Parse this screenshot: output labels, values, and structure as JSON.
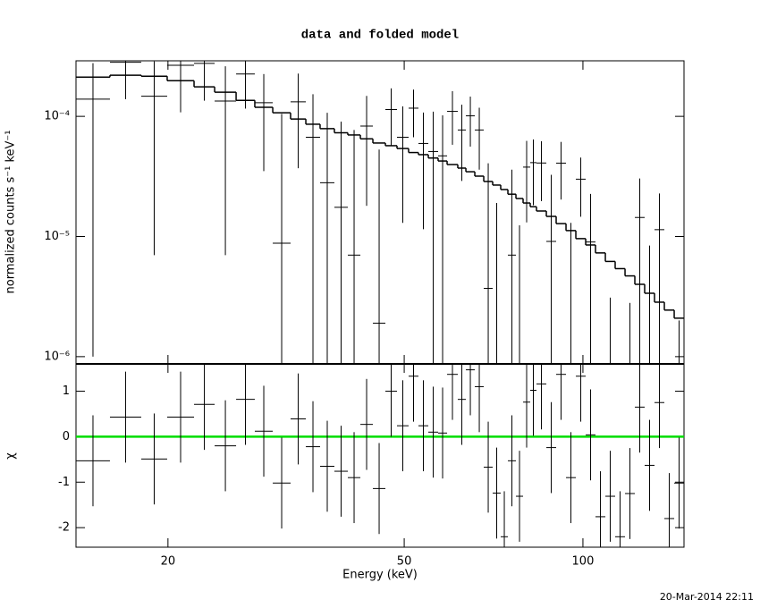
{
  "title": "data and folded model",
  "timestamp": "20-Mar-2014 22:11",
  "chart_data": [
    {
      "type": "spectrum",
      "ylabel": "normalized counts s⁻¹ keV⁻¹",
      "log_x": true,
      "log_y": true,
      "xlim": [
        14,
        148
      ],
      "ylim": [
        8.7e-07,
        0.00029
      ],
      "xticks": [
        20,
        50,
        100
      ],
      "yticks": [
        {
          "value": 1e-06,
          "label": "10⁻⁶"
        },
        {
          "value": 1e-05,
          "label": "10⁻⁵"
        },
        {
          "value": 0.0001,
          "label": "10⁻⁴"
        }
      ],
      "bins": [
        14.0,
        15.97,
        18.03,
        19.94,
        22.13,
        23.97,
        26.05,
        28.01,
        30.03,
        32.18,
        34.14,
        36.08,
        38.14,
        40.18,
        42.18,
        44.28,
        46.48,
        48.62,
        50.86,
        52.84,
        54.9,
        57.03,
        59.05,
        61.55,
        63.51,
        65.75,
        68.07,
        70.47,
        72.7,
        74.75,
        77.12,
        79.29,
        81.51,
        83.52,
        86.77,
        90.14,
        93.65,
        97.29,
        101.08,
        105.0,
        109.09,
        113.32,
        117.74,
        122.31,
        127.06,
        132.01,
        137.14,
        142.48,
        148.0
      ],
      "data": {
        "color": "#000000",
        "values": [
          0.000139,
          0.000282,
          0.000147,
          0.000266,
          0.000276,
          0.000134,
          0.000225,
          0.00013,
          8.8e-06,
          0.000132,
          6.7e-05,
          2.8e-05,
          1.75e-05,
          7e-06,
          8.3e-05,
          1.9e-06,
          0.000114,
          6.7e-05,
          0.000117,
          5.95e-05,
          5.1e-05,
          4.69e-05,
          0.00011,
          7.7e-05,
          0.000101,
          7.7e-05,
          3.7e-06,
          -1.6e-05,
          -4.6e-05,
          7e-06,
          -1.46e-05,
          3.78e-05,
          4.12e-05,
          4.09e-05,
          9.1e-06,
          4.08e-05,
          -4.9e-06,
          3e-05,
          9e-06,
          -1.33e-05,
          -6.8e-06,
          -1.36e-05,
          -4.7e-06,
          1.44e-05,
          -5.1e-06,
          1.14e-05,
          -1.51e-05,
          -6.4e-06
        ],
        "errors": [
          0.000138,
          0.000143,
          0.00014,
          0.000158,
          0.000141,
          0.000127,
          0.000109,
          9.5e-05,
          9.6e-05,
          9.5e-05,
          8.6e-05,
          7.9e-05,
          7.3e-05,
          7e-05,
          6.5e-05,
          5.1e-05,
          5.7e-05,
          5.4e-05,
          5e-05,
          4.8e-05,
          5.85e-05,
          5.5e-05,
          5.2e-05,
          4.8e-05,
          4.5e-05,
          4.1e-05,
          3.7e-05,
          3.5e-05,
          3.2e-05,
          2.9e-05,
          2.7e-05,
          2.47e-05,
          2.3e-05,
          2.12e-05,
          2.35e-05,
          2.05e-05,
          1.79e-05,
          1.54e-05,
          1.36e-05,
          1.17e-05,
          9.9e-06,
          8.6e-06,
          7.5e-06,
          1.6e-05,
          1.35e-05,
          1.14e-05,
          9.8e-06,
          8.4e-06
        ]
      },
      "model": {
        "color": "#000000",
        "values": [
          0.000212,
          0.00022,
          0.000216,
          0.000198,
          0.000176,
          0.000159,
          0.000136,
          0.000119,
          0.000107,
          9.5e-05,
          8.6e-05,
          7.9e-05,
          7.3e-05,
          7e-05,
          6.5e-05,
          6e-05,
          5.7e-05,
          5.4e-05,
          5e-05,
          4.8e-05,
          4.5e-05,
          4.25e-05,
          3.97e-05,
          3.71e-05,
          3.46e-05,
          3.18e-05,
          2.87e-05,
          2.68e-05,
          2.46e-05,
          2.25e-05,
          2.07e-05,
          1.9e-05,
          1.77e-05,
          1.63e-05,
          1.47e-05,
          1.28e-05,
          1.12e-05,
          9.6e-06,
          8.5e-06,
          7.3e-06,
          6.2e-06,
          5.4e-06,
          4.7e-06,
          4e-06,
          3.37e-06,
          2.84e-06,
          2.44e-06,
          2.09e-06
        ]
      }
    },
    {
      "type": "residuals",
      "xlabel": "Energy (keV)",
      "ylabel": "χ",
      "log_x": true,
      "xlim": [
        14,
        148
      ],
      "ylim": [
        -2.43,
        1.6
      ],
      "xticks": [
        20,
        50,
        100
      ],
      "yticks": [
        -2,
        -1,
        0,
        1
      ],
      "bins": [
        14.0,
        15.97,
        18.03,
        19.94,
        22.13,
        23.97,
        26.05,
        28.01,
        30.03,
        32.18,
        34.14,
        36.08,
        38.14,
        40.18,
        42.18,
        44.28,
        46.48,
        48.62,
        50.86,
        52.84,
        54.9,
        57.03,
        59.05,
        61.55,
        63.51,
        65.75,
        68.07,
        70.47,
        72.7,
        74.75,
        77.12,
        79.29,
        81.51,
        83.52,
        86.77,
        90.14,
        93.65,
        97.29,
        101.08,
        105.0,
        109.09,
        113.32,
        117.74,
        122.31,
        127.06,
        132.01,
        137.14,
        142.48,
        148.0
      ],
      "data": {
        "color": "#000000",
        "values": [
          -0.53,
          0.43,
          -0.49,
          0.43,
          0.71,
          -0.2,
          0.82,
          0.12,
          -1.02,
          0.39,
          -0.22,
          -0.65,
          -0.76,
          -0.9,
          0.27,
          -1.14,
          1.0,
          0.24,
          1.33,
          0.24,
          0.1,
          0.08,
          1.37,
          0.82,
          1.47,
          1.1,
          -0.67,
          -1.24,
          -2.2,
          -0.53,
          -1.31,
          0.76,
          1.02,
          1.16,
          -0.24,
          1.37,
          -0.9,
          1.33,
          0.04,
          -1.76,
          -1.31,
          -2.2,
          -1.25,
          0.65,
          -0.63,
          0.75,
          -1.8,
          -1.02
        ],
        "errors": [
          1,
          1,
          1,
          1,
          1,
          1,
          1,
          1,
          1,
          1,
          1,
          1,
          1,
          1,
          1,
          1,
          1,
          1,
          1,
          1,
          1,
          1,
          1,
          1,
          1,
          1,
          1,
          1,
          1,
          1,
          1,
          1,
          1,
          1,
          1,
          1,
          1,
          1,
          1,
          1,
          1,
          1,
          1,
          1,
          1,
          1,
          1,
          1
        ]
      },
      "reference_line": {
        "value": 0,
        "color": "#00dd00"
      }
    }
  ]
}
